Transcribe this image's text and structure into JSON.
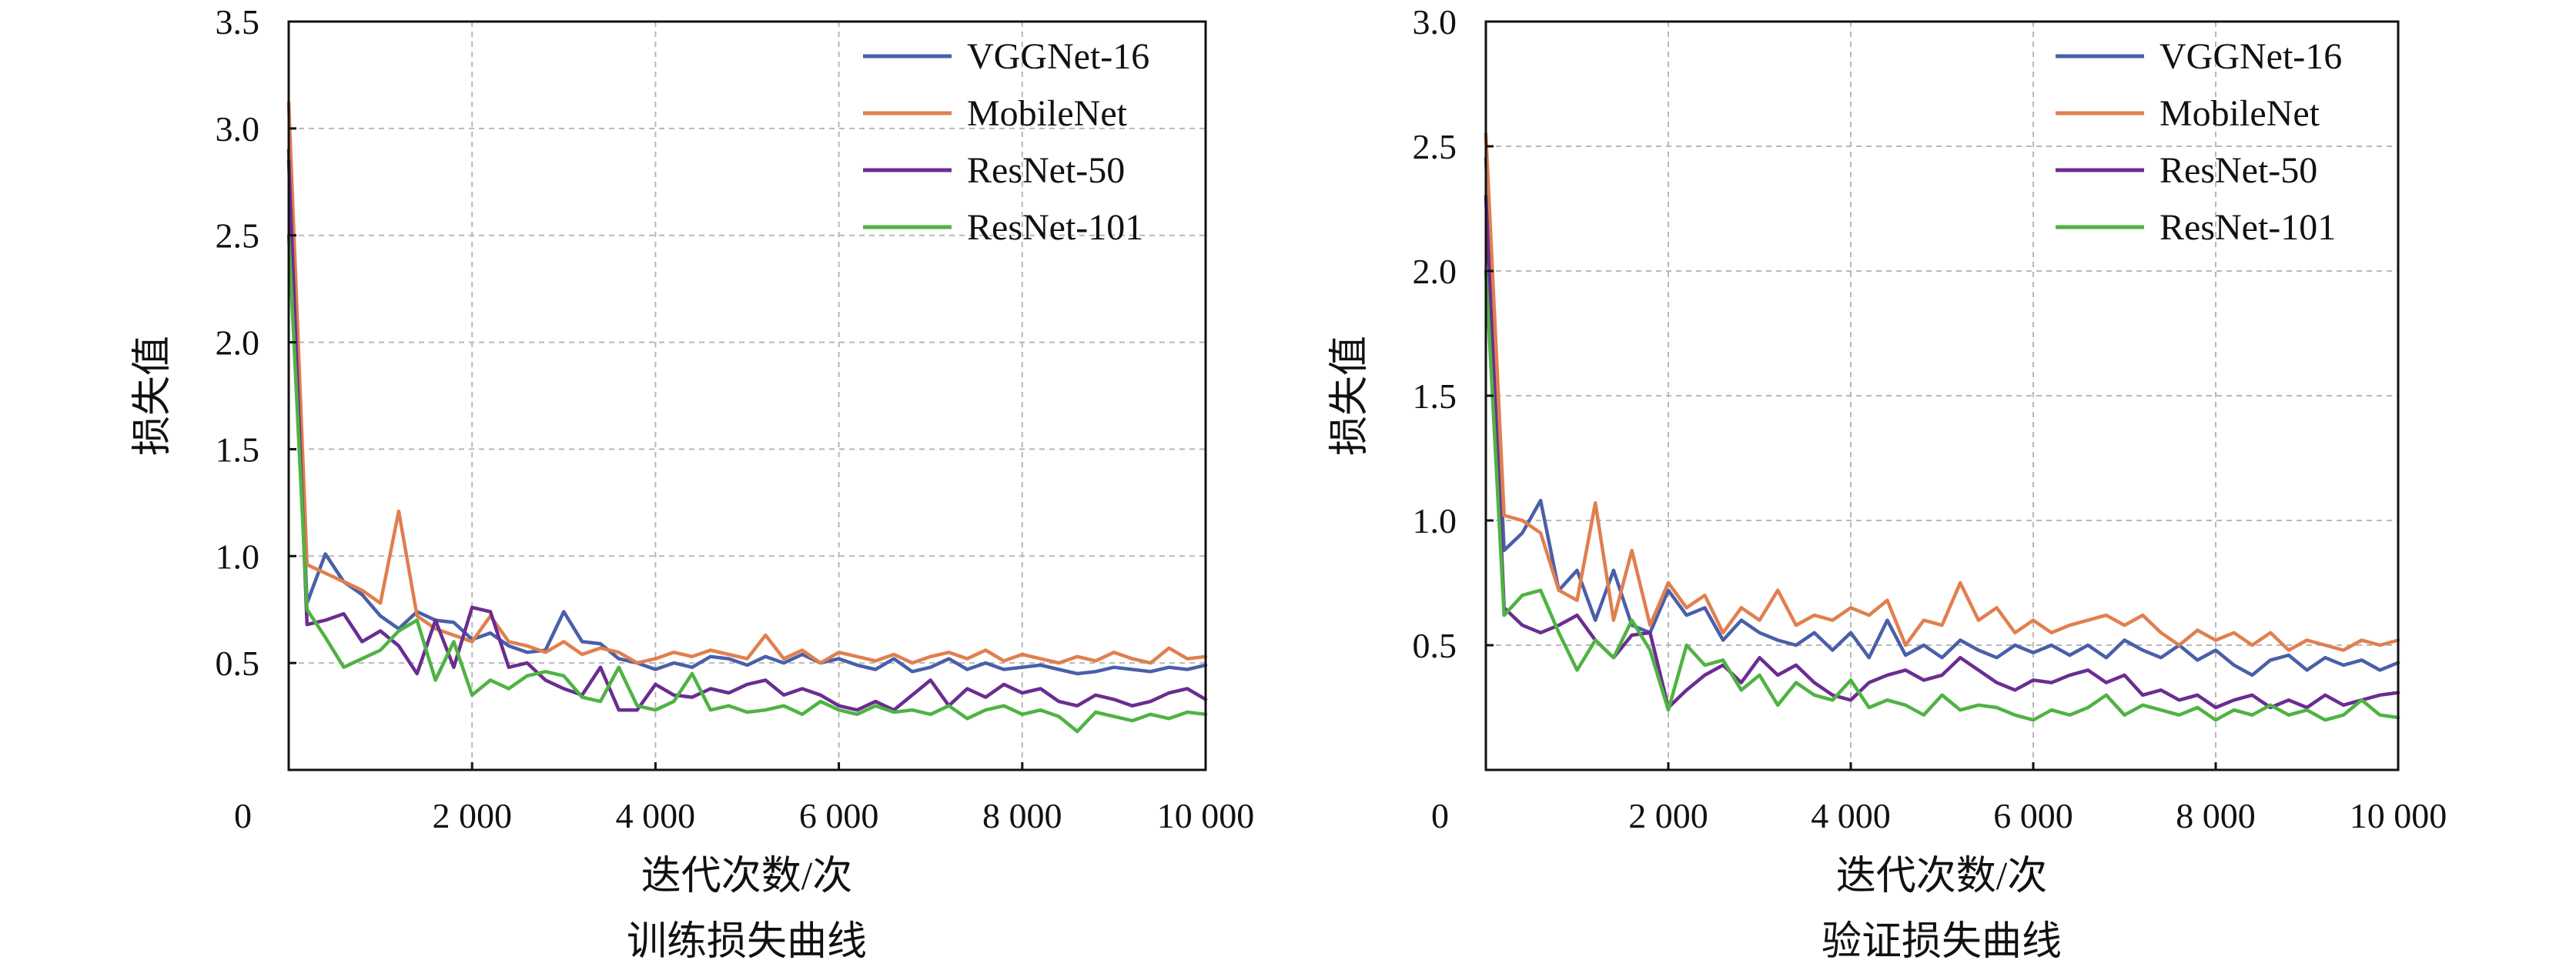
{
  "chart_data": [
    {
      "type": "line",
      "title": "训练损失曲线",
      "xlabel": "迭代次数/次",
      "ylabel": "损失值",
      "xlim": [
        0,
        10000
      ],
      "ylim": [
        0,
        3.5
      ],
      "x_ticks": [
        2000,
        4000,
        6000,
        8000,
        10000
      ],
      "x_tick_labels": [
        "2 000",
        "4 000",
        "6 000",
        "8 000",
        "10 000"
      ],
      "y_ticks": [
        0.5,
        1.0,
        1.5,
        2.0,
        2.5,
        3.0,
        3.5
      ],
      "y_tick_labels": [
        "0.5",
        "1.0",
        "1.5",
        "2.0",
        "2.5",
        "3.0",
        "3.5"
      ],
      "origin_label": "0",
      "grid": true,
      "legend_position": "top-right",
      "x": [
        0,
        200,
        400,
        600,
        800,
        1000,
        1200,
        1400,
        1600,
        1800,
        2000,
        2200,
        2400,
        2600,
        2800,
        3000,
        3200,
        3400,
        3600,
        3800,
        4000,
        4200,
        4400,
        4600,
        4800,
        5000,
        5200,
        5400,
        5600,
        5800,
        6000,
        6200,
        6400,
        6600,
        6800,
        7000,
        7200,
        7400,
        7600,
        7800,
        8000,
        8200,
        8400,
        8600,
        8800,
        9000,
        9200,
        9400,
        9600,
        9800,
        10000
      ],
      "series": [
        {
          "name": "VGGNet-16",
          "color": "#4a5fa8",
          "values": [
            2.9,
            0.78,
            1.01,
            0.88,
            0.82,
            0.72,
            0.66,
            0.74,
            0.7,
            0.69,
            0.61,
            0.64,
            0.58,
            0.55,
            0.56,
            0.74,
            0.6,
            0.59,
            0.52,
            0.5,
            0.47,
            0.5,
            0.48,
            0.53,
            0.52,
            0.49,
            0.53,
            0.5,
            0.54,
            0.5,
            0.52,
            0.49,
            0.47,
            0.52,
            0.46,
            0.48,
            0.52,
            0.47,
            0.5,
            0.47,
            0.48,
            0.49,
            0.47,
            0.45,
            0.46,
            0.48,
            0.47,
            0.46,
            0.48,
            0.47,
            0.49
          ]
        },
        {
          "name": "MobileNet",
          "color": "#e07f4f",
          "values": [
            3.12,
            0.96,
            0.92,
            0.88,
            0.84,
            0.78,
            1.21,
            0.72,
            0.66,
            0.63,
            0.6,
            0.72,
            0.6,
            0.58,
            0.55,
            0.6,
            0.54,
            0.57,
            0.55,
            0.5,
            0.52,
            0.55,
            0.53,
            0.56,
            0.54,
            0.52,
            0.63,
            0.52,
            0.56,
            0.5,
            0.55,
            0.53,
            0.51,
            0.54,
            0.5,
            0.53,
            0.55,
            0.52,
            0.56,
            0.51,
            0.54,
            0.52,
            0.5,
            0.53,
            0.51,
            0.55,
            0.52,
            0.5,
            0.57,
            0.52,
            0.53
          ]
        },
        {
          "name": "ResNet-50",
          "color": "#6a2d91",
          "values": [
            2.85,
            0.68,
            0.7,
            0.73,
            0.6,
            0.65,
            0.58,
            0.45,
            0.7,
            0.48,
            0.76,
            0.74,
            0.48,
            0.5,
            0.42,
            0.38,
            0.35,
            0.48,
            0.28,
            0.28,
            0.4,
            0.35,
            0.34,
            0.38,
            0.36,
            0.4,
            0.42,
            0.35,
            0.38,
            0.35,
            0.3,
            0.28,
            0.32,
            0.28,
            0.35,
            0.42,
            0.3,
            0.38,
            0.34,
            0.4,
            0.36,
            0.38,
            0.32,
            0.3,
            0.35,
            0.33,
            0.3,
            0.32,
            0.36,
            0.38,
            0.33
          ]
        },
        {
          "name": "ResNet-101",
          "color": "#4fb342",
          "values": [
            2.5,
            0.75,
            0.62,
            0.48,
            0.52,
            0.56,
            0.65,
            0.7,
            0.42,
            0.6,
            0.35,
            0.42,
            0.38,
            0.44,
            0.46,
            0.44,
            0.34,
            0.32,
            0.48,
            0.3,
            0.28,
            0.32,
            0.45,
            0.28,
            0.3,
            0.27,
            0.28,
            0.3,
            0.26,
            0.32,
            0.28,
            0.26,
            0.3,
            0.27,
            0.28,
            0.26,
            0.3,
            0.24,
            0.28,
            0.3,
            0.26,
            0.28,
            0.25,
            0.18,
            0.27,
            0.25,
            0.23,
            0.26,
            0.24,
            0.27,
            0.26
          ]
        }
      ]
    },
    {
      "type": "line",
      "title": "验证损失曲线",
      "xlabel": "迭代次数/次",
      "ylabel": "损失值",
      "xlim": [
        0,
        10000
      ],
      "ylim": [
        0,
        3.0
      ],
      "x_ticks": [
        2000,
        4000,
        6000,
        8000,
        10000
      ],
      "x_tick_labels": [
        "2 000",
        "4 000",
        "6 000",
        "8 000",
        "10 000"
      ],
      "y_ticks": [
        0.5,
        1.0,
        1.5,
        2.0,
        2.5,
        3.0
      ],
      "y_tick_labels": [
        "0.5",
        "1.0",
        "1.5",
        "2.0",
        "2.5",
        "3.0"
      ],
      "origin_label": "0",
      "grid": true,
      "legend_position": "top-right",
      "x": [
        0,
        200,
        400,
        600,
        800,
        1000,
        1200,
        1400,
        1600,
        1800,
        2000,
        2200,
        2400,
        2600,
        2800,
        3000,
        3200,
        3400,
        3600,
        3800,
        4000,
        4200,
        4400,
        4600,
        4800,
        5000,
        5200,
        5400,
        5600,
        5800,
        6000,
        6200,
        6400,
        6600,
        6800,
        7000,
        7200,
        7400,
        7600,
        7800,
        8000,
        8200,
        8400,
        8600,
        8800,
        9000,
        9200,
        9400,
        9600,
        9800,
        10000
      ],
      "series": [
        {
          "name": "VGGNet-16",
          "color": "#4a5fa8",
          "values": [
            2.45,
            0.88,
            0.95,
            1.08,
            0.72,
            0.8,
            0.6,
            0.8,
            0.58,
            0.55,
            0.72,
            0.62,
            0.65,
            0.52,
            0.6,
            0.55,
            0.52,
            0.5,
            0.55,
            0.48,
            0.55,
            0.45,
            0.6,
            0.46,
            0.5,
            0.45,
            0.52,
            0.48,
            0.45,
            0.5,
            0.47,
            0.5,
            0.46,
            0.5,
            0.45,
            0.52,
            0.48,
            0.45,
            0.5,
            0.44,
            0.48,
            0.42,
            0.38,
            0.44,
            0.46,
            0.4,
            0.45,
            0.42,
            0.44,
            0.4,
            0.43
          ]
        },
        {
          "name": "MobileNet",
          "color": "#e07f4f",
          "values": [
            2.55,
            1.02,
            1.0,
            0.95,
            0.72,
            0.68,
            1.07,
            0.6,
            0.88,
            0.58,
            0.75,
            0.65,
            0.7,
            0.55,
            0.65,
            0.6,
            0.72,
            0.58,
            0.62,
            0.6,
            0.65,
            0.62,
            0.68,
            0.5,
            0.6,
            0.58,
            0.75,
            0.6,
            0.65,
            0.55,
            0.6,
            0.55,
            0.58,
            0.6,
            0.62,
            0.58,
            0.62,
            0.55,
            0.5,
            0.56,
            0.52,
            0.55,
            0.5,
            0.55,
            0.48,
            0.52,
            0.5,
            0.48,
            0.52,
            0.5,
            0.52
          ]
        },
        {
          "name": "ResNet-50",
          "color": "#6a2d91",
          "values": [
            2.3,
            0.65,
            0.58,
            0.55,
            0.58,
            0.62,
            0.52,
            0.45,
            0.54,
            0.55,
            0.25,
            0.32,
            0.38,
            0.42,
            0.35,
            0.45,
            0.38,
            0.42,
            0.35,
            0.3,
            0.28,
            0.35,
            0.38,
            0.4,
            0.36,
            0.38,
            0.45,
            0.4,
            0.35,
            0.32,
            0.36,
            0.35,
            0.38,
            0.4,
            0.35,
            0.38,
            0.3,
            0.32,
            0.28,
            0.3,
            0.25,
            0.28,
            0.3,
            0.25,
            0.28,
            0.25,
            0.3,
            0.26,
            0.28,
            0.3,
            0.31
          ]
        },
        {
          "name": "ResNet-101",
          "color": "#4fb342",
          "values": [
            2.0,
            0.62,
            0.7,
            0.72,
            0.55,
            0.4,
            0.52,
            0.45,
            0.6,
            0.48,
            0.24,
            0.5,
            0.42,
            0.44,
            0.32,
            0.38,
            0.26,
            0.35,
            0.3,
            0.28,
            0.36,
            0.25,
            0.28,
            0.26,
            0.22,
            0.3,
            0.24,
            0.26,
            0.25,
            0.22,
            0.2,
            0.24,
            0.22,
            0.25,
            0.3,
            0.22,
            0.26,
            0.24,
            0.22,
            0.25,
            0.2,
            0.24,
            0.22,
            0.26,
            0.22,
            0.24,
            0.2,
            0.22,
            0.28,
            0.22,
            0.21
          ]
        }
      ]
    }
  ]
}
